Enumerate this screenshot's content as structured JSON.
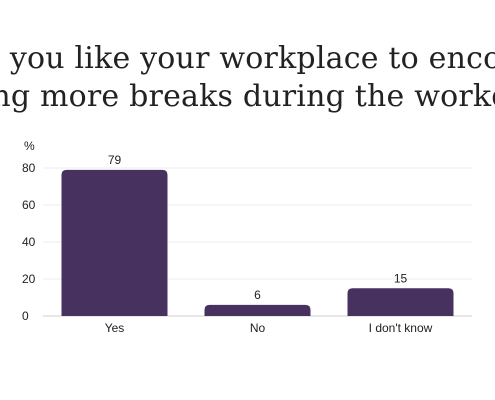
{
  "header": {
    "title_line1": "Would you like your workplace to encourage",
    "title_line2": "taking more breaks during the workday?"
  },
  "chart_data": {
    "type": "bar",
    "title": "Would you like your workplace to encourage taking more breaks during the workday?",
    "ylabel": "%",
    "xlabel": "",
    "categories": [
      "Yes",
      "No",
      "I don't know"
    ],
    "values": [
      79,
      6,
      15
    ],
    "ylim": [
      0,
      80
    ],
    "yticks": [
      0,
      20,
      40,
      60,
      80
    ],
    "bar_color": "#47325f",
    "grid": true,
    "legend": "none"
  }
}
